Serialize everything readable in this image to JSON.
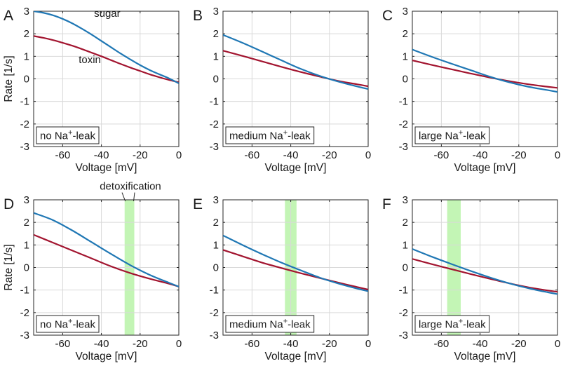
{
  "chart_data": [
    {
      "type": "line",
      "panel": "A",
      "box_label": {
        "pre": "no Na",
        "sup": "+",
        "post": "-leak"
      },
      "xlabel": "Voltage [mV]",
      "ylabel": "Rate [1/s]",
      "xlim": [
        -75,
        0
      ],
      "ylim": [
        -3,
        3
      ],
      "xticks": [
        -60,
        -40,
        -20,
        0
      ],
      "yticks": [
        -3,
        -2,
        -1,
        0,
        1,
        2,
        3
      ],
      "xtick_labels": [
        "-60",
        "-40",
        "-20",
        "0"
      ],
      "ytick_labels": [
        "-3",
        "-2",
        "-1",
        "0",
        "1",
        "2",
        "3"
      ],
      "grid": true,
      "series": [
        {
          "name": "sugar",
          "color": "#1f77b4",
          "x": [
            -75,
            -70,
            -65,
            -60,
            -55,
            -50,
            -45,
            -40,
            -35,
            -30,
            -25,
            -20,
            -15,
            -10,
            -5,
            0
          ],
          "y": [
            3.0,
            2.93,
            2.82,
            2.66,
            2.46,
            2.22,
            1.96,
            1.68,
            1.4,
            1.12,
            0.86,
            0.61,
            0.39,
            0.2,
            0.02,
            -0.2
          ]
        },
        {
          "name": "toxin",
          "color": "#a2142f",
          "x": [
            -75,
            -70,
            -65,
            -60,
            -55,
            -50,
            -45,
            -40,
            -35,
            -30,
            -25,
            -20,
            -15,
            -10,
            -5,
            0
          ],
          "y": [
            1.9,
            1.82,
            1.72,
            1.6,
            1.47,
            1.32,
            1.16,
            1.0,
            0.83,
            0.66,
            0.5,
            0.35,
            0.2,
            0.07,
            -0.05,
            -0.15
          ]
        }
      ],
      "annotations": [
        {
          "text": "sugar",
          "x": -37,
          "y": 2.75
        },
        {
          "text": "toxin",
          "x": -46,
          "y": 0.7
        }
      ]
    },
    {
      "type": "line",
      "panel": "B",
      "box_label": {
        "pre": "medium Na",
        "sup": "+",
        "post": "-leak"
      },
      "xlabel": "Voltage [mV]",
      "ylabel": "",
      "xlim": [
        -75,
        0
      ],
      "ylim": [
        -3,
        3
      ],
      "xticks": [
        -60,
        -40,
        -20,
        0
      ],
      "yticks": [
        -3,
        -2,
        -1,
        0,
        1,
        2,
        3
      ],
      "xtick_labels": [
        "-60",
        "-40",
        "-20",
        "0"
      ],
      "ytick_labels": [
        "-3",
        "-2",
        "-1",
        "0",
        "1",
        "2",
        "3"
      ],
      "grid": true,
      "series": [
        {
          "name": "sugar",
          "color": "#1f77b4",
          "x": [
            -75,
            -65,
            -55,
            -45,
            -35,
            -25,
            -15,
            -5,
            0
          ],
          "y": [
            1.95,
            1.6,
            1.22,
            0.83,
            0.45,
            0.13,
            -0.13,
            -0.35,
            -0.45
          ]
        },
        {
          "name": "toxin",
          "color": "#a2142f",
          "x": [
            -75,
            -65,
            -55,
            -45,
            -35,
            -25,
            -15,
            -5,
            0
          ],
          "y": [
            1.25,
            1.02,
            0.78,
            0.54,
            0.31,
            0.1,
            -0.1,
            -0.25,
            -0.33
          ]
        }
      ]
    },
    {
      "type": "line",
      "panel": "C",
      "box_label": {
        "pre": "large Na",
        "sup": "+",
        "post": "-leak"
      },
      "xlabel": "Voltage [mV]",
      "ylabel": "",
      "xlim": [
        -75,
        0
      ],
      "ylim": [
        -3,
        3
      ],
      "xticks": [
        -60,
        -40,
        -20,
        0
      ],
      "yticks": [
        -3,
        -2,
        -1,
        0,
        1,
        2,
        3
      ],
      "xtick_labels": [
        "-60",
        "-40",
        "-20",
        "0"
      ],
      "ytick_labels": [
        "-3",
        "-2",
        "-1",
        "0",
        "1",
        "2",
        "3"
      ],
      "grid": true,
      "series": [
        {
          "name": "sugar",
          "color": "#1f77b4",
          "x": [
            -75,
            -65,
            -55,
            -45,
            -35,
            -25,
            -15,
            -5,
            0
          ],
          "y": [
            1.3,
            0.98,
            0.68,
            0.39,
            0.1,
            -0.15,
            -0.35,
            -0.5,
            -0.58
          ]
        },
        {
          "name": "toxin",
          "color": "#a2142f",
          "x": [
            -75,
            -65,
            -55,
            -45,
            -35,
            -25,
            -15,
            -5,
            0
          ],
          "y": [
            0.82,
            0.62,
            0.43,
            0.24,
            0.06,
            -0.1,
            -0.24,
            -0.35,
            -0.4
          ]
        }
      ]
    },
    {
      "type": "line",
      "panel": "D",
      "box_label": {
        "pre": "no Na",
        "sup": "+",
        "post": "-leak"
      },
      "xlabel": "Voltage [mV]",
      "ylabel": "Rate [1/s]",
      "xlim": [
        -75,
        0
      ],
      "ylim": [
        -3,
        3
      ],
      "xticks": [
        -60,
        -40,
        -20,
        0
      ],
      "yticks": [
        -3,
        -2,
        -1,
        0,
        1,
        2,
        3
      ],
      "xtick_labels": [
        "-60",
        "-40",
        "-20",
        "0"
      ],
      "ytick_labels": [
        "-3",
        "-2",
        "-1",
        "0",
        "1",
        "2",
        "3"
      ],
      "grid": true,
      "band": [
        -28,
        -23
      ],
      "series": [
        {
          "name": "sugar",
          "color": "#1f77b4",
          "x": [
            -75,
            -65,
            -55,
            -45,
            -35,
            -25,
            -15,
            -5,
            0
          ],
          "y": [
            2.42,
            2.1,
            1.64,
            1.12,
            0.6,
            0.1,
            -0.33,
            -0.68,
            -0.85
          ]
        },
        {
          "name": "toxin",
          "color": "#a2142f",
          "x": [
            -75,
            -65,
            -55,
            -45,
            -35,
            -25,
            -15,
            -5,
            0
          ],
          "y": [
            1.45,
            1.1,
            0.75,
            0.4,
            0.05,
            -0.25,
            -0.5,
            -0.72,
            -0.85
          ]
        }
      ],
      "annotations": [
        {
          "text": "detoxification",
          "x": -25,
          "y": 3.45
        }
      ]
    },
    {
      "type": "line",
      "panel": "E",
      "box_label": {
        "pre": "medium Na",
        "sup": "+",
        "post": "-leak"
      },
      "xlabel": "Voltage [mV]",
      "ylabel": "",
      "xlim": [
        -75,
        0
      ],
      "ylim": [
        -3,
        3
      ],
      "xticks": [
        -60,
        -40,
        -20,
        0
      ],
      "yticks": [
        -3,
        -2,
        -1,
        0,
        1,
        2,
        3
      ],
      "xtick_labels": [
        "-60",
        "-40",
        "-20",
        "0"
      ],
      "ytick_labels": [
        "-3",
        "-2",
        "-1",
        "0",
        "1",
        "2",
        "3"
      ],
      "grid": true,
      "band": [
        -43,
        -37
      ],
      "series": [
        {
          "name": "sugar",
          "color": "#1f77b4",
          "x": [
            -75,
            -65,
            -55,
            -45,
            -35,
            -25,
            -15,
            -5,
            0
          ],
          "y": [
            1.42,
            1.0,
            0.6,
            0.22,
            -0.12,
            -0.45,
            -0.72,
            -0.95,
            -1.05
          ]
        },
        {
          "name": "toxin",
          "color": "#a2142f",
          "x": [
            -75,
            -65,
            -55,
            -45,
            -35,
            -25,
            -15,
            -5,
            0
          ],
          "y": [
            0.78,
            0.5,
            0.22,
            -0.02,
            -0.25,
            -0.47,
            -0.68,
            -0.88,
            -0.98
          ]
        }
      ]
    },
    {
      "type": "line",
      "panel": "F",
      "box_label": {
        "pre": "large Na",
        "sup": "+",
        "post": "-leak"
      },
      "xlabel": "Voltage [mV]",
      "ylabel": "",
      "xlim": [
        -75,
        0
      ],
      "ylim": [
        -3,
        3
      ],
      "xticks": [
        -60,
        -40,
        -20,
        0
      ],
      "yticks": [
        -3,
        -2,
        -1,
        0,
        1,
        2,
        3
      ],
      "xtick_labels": [
        "-60",
        "-40",
        "-20",
        "0"
      ],
      "ytick_labels": [
        "-3",
        "-2",
        "-1",
        "0",
        "1",
        "2",
        "3"
      ],
      "grid": true,
      "band": [
        -57,
        -50
      ],
      "series": [
        {
          "name": "sugar",
          "color": "#1f77b4",
          "x": [
            -75,
            -65,
            -55,
            -45,
            -35,
            -25,
            -15,
            -5,
            0
          ],
          "y": [
            0.82,
            0.48,
            0.16,
            -0.15,
            -0.44,
            -0.7,
            -0.92,
            -1.1,
            -1.18
          ]
        },
        {
          "name": "toxin",
          "color": "#a2142f",
          "x": [
            -75,
            -65,
            -55,
            -45,
            -35,
            -25,
            -15,
            -5,
            0
          ],
          "y": [
            0.38,
            0.15,
            -0.07,
            -0.29,
            -0.5,
            -0.7,
            -0.88,
            -1.02,
            -1.08
          ]
        }
      ]
    }
  ]
}
